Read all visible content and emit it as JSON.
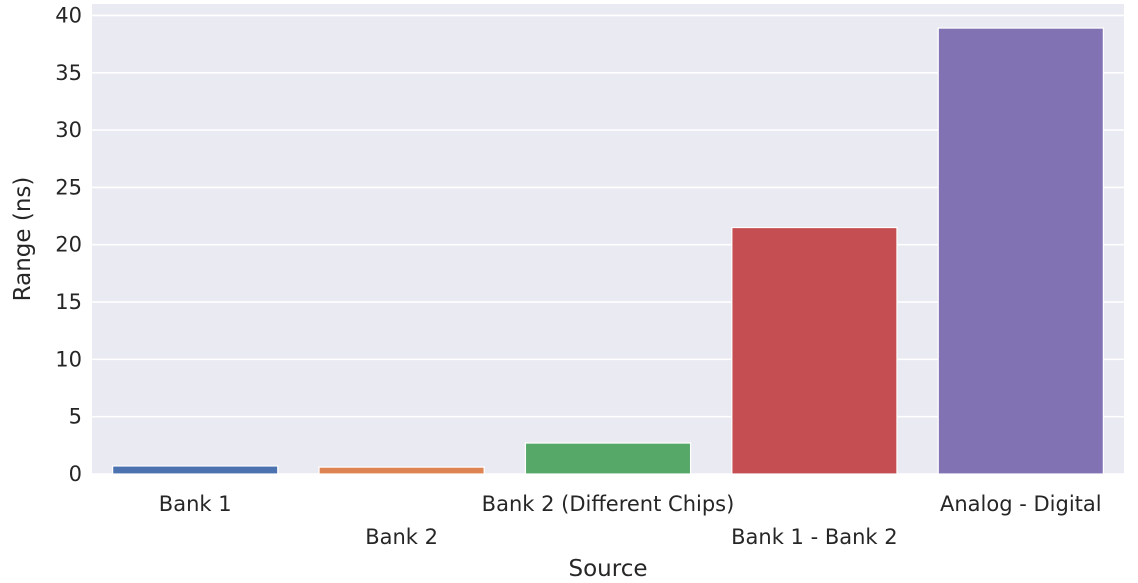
{
  "chart_data": {
    "type": "bar",
    "title": "",
    "xlabel": "Source",
    "ylabel": "Range (ns)",
    "categories": [
      "Bank 1",
      "Bank 2",
      "Bank 2 (Different Chips)",
      "Bank 1 - Bank 2",
      "Analog - Digital"
    ],
    "values": [
      0.7,
      0.6,
      2.7,
      21.5,
      38.9
    ],
    "colors": [
      "#4c72b0",
      "#dd8452",
      "#55a868",
      "#c44e52",
      "#8172b3"
    ],
    "ylim": [
      0,
      41
    ],
    "yticks": [
      0,
      5,
      10,
      15,
      20,
      25,
      30,
      35,
      40
    ],
    "grid": true,
    "background": "#eaeaf2",
    "legend": "none"
  }
}
